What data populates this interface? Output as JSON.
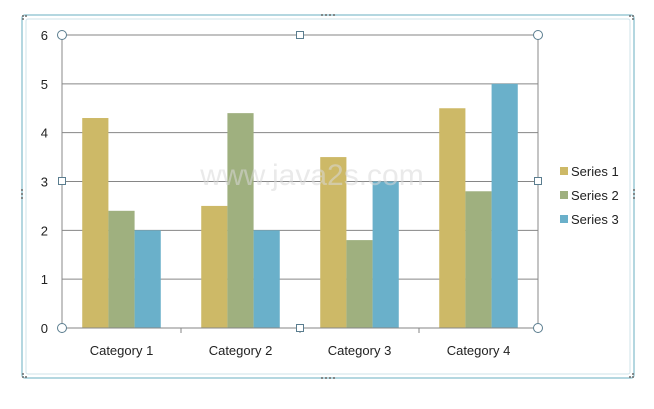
{
  "watermark": "www.java2s.com",
  "chart_data": {
    "type": "bar",
    "title": "",
    "xlabel": "",
    "ylabel": "",
    "categories": [
      "Category 1",
      "Category 2",
      "Category 3",
      "Category 4"
    ],
    "series": [
      {
        "name": "Series 1",
        "color": "#CDB967",
        "values": [
          4.3,
          2.5,
          3.5,
          4.5
        ]
      },
      {
        "name": "Series 2",
        "color": "#9FB07F",
        "values": [
          2.4,
          4.4,
          1.8,
          2.8
        ]
      },
      {
        "name": "Series 3",
        "color": "#6AB0CA",
        "values": [
          2.0,
          2.0,
          3.0,
          5.0
        ]
      }
    ],
    "ylim": [
      0,
      6
    ],
    "yticks": [
      0,
      1,
      2,
      3,
      4,
      5,
      6
    ],
    "grid": true,
    "legend_position": "right",
    "gridline_color": "#868686"
  }
}
